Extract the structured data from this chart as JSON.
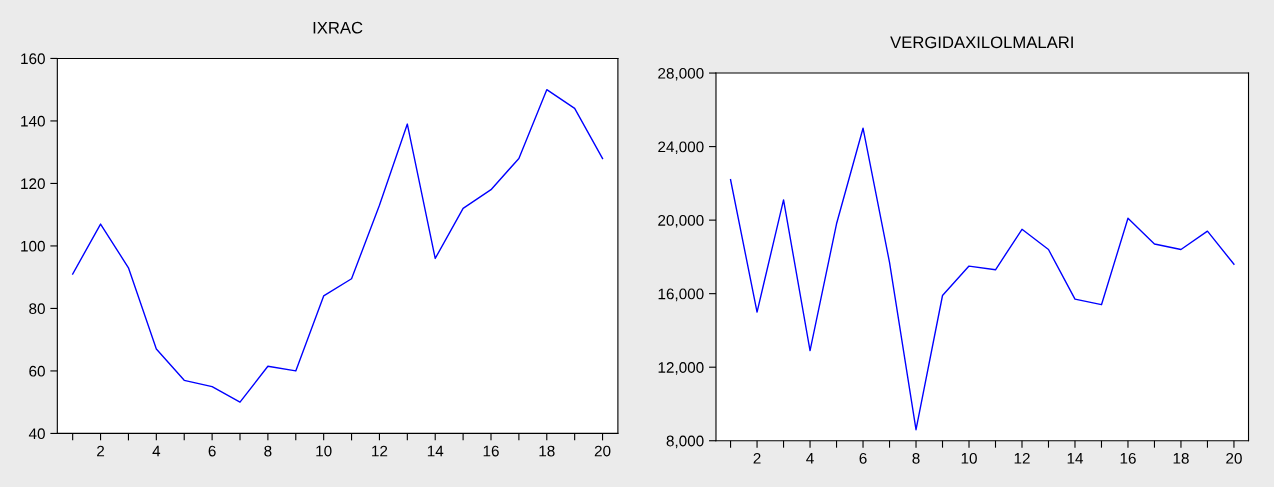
{
  "chart_data": [
    {
      "type": "line",
      "title": "IXRAC",
      "x": [
        1,
        2,
        3,
        4,
        5,
        6,
        7,
        8,
        9,
        10,
        11,
        12,
        13,
        14,
        15,
        16,
        17,
        18,
        19,
        20
      ],
      "series": [
        {
          "color": "#0000ff",
          "values": [
            91,
            107,
            93,
            67,
            57,
            55,
            50,
            61.5,
            60,
            84,
            89.5,
            113,
            139,
            96,
            112,
            118,
            128,
            150,
            144,
            128
          ]
        }
      ],
      "xlim": [
        0.45,
        20.55
      ],
      "xticks": [
        {
          "value": 1,
          "label": null
        },
        2,
        {
          "value": 3,
          "label": null
        },
        4,
        {
          "value": 5,
          "label": null
        },
        6,
        {
          "value": 7,
          "label": null
        },
        8,
        {
          "value": 9,
          "label": null
        },
        10,
        {
          "value": 11,
          "label": null
        },
        12,
        {
          "value": 13,
          "label": null
        },
        14,
        {
          "value": 15,
          "label": null
        },
        16,
        {
          "value": 17,
          "label": null
        },
        18,
        {
          "value": 19,
          "label": null
        },
        20
      ],
      "ylim": [
        40,
        160
      ],
      "yticks": [
        40,
        60,
        80,
        100,
        120,
        140,
        160
      ],
      "grid": false,
      "legend": false
    },
    {
      "type": "line",
      "title": "VERGIDAXILOLMALARI",
      "x": [
        1,
        2,
        3,
        4,
        5,
        6,
        7,
        8,
        9,
        10,
        11,
        12,
        13,
        14,
        15,
        16,
        17,
        18,
        19,
        20
      ],
      "series": [
        {
          "color": "#0000ff",
          "values": [
            22200,
            15000,
            21100,
            12900,
            19800,
            25000,
            17700,
            8600,
            15900,
            17500,
            17300,
            19500,
            18400,
            15700,
            15400,
            20100,
            18700,
            18400,
            19400,
            17600
          ]
        }
      ],
      "xlim": [
        0.45,
        20.55
      ],
      "xticks": [
        {
          "value": 1,
          "label": null
        },
        2,
        {
          "value": 3,
          "label": null
        },
        4,
        {
          "value": 5,
          "label": null
        },
        6,
        {
          "value": 7,
          "label": null
        },
        8,
        {
          "value": 9,
          "label": null
        },
        10,
        {
          "value": 11,
          "label": null
        },
        12,
        {
          "value": 13,
          "label": null
        },
        14,
        {
          "value": 15,
          "label": null
        },
        16,
        {
          "value": 17,
          "label": null
        },
        18,
        {
          "value": 19,
          "label": null
        },
        20
      ],
      "ylim": [
        8000,
        28000
      ],
      "yticks": [
        {
          "value": 8000,
          "label": "8,000"
        },
        {
          "value": 12000,
          "label": "12,000"
        },
        {
          "value": 16000,
          "label": "16,000"
        },
        {
          "value": 20000,
          "label": "20,000"
        },
        {
          "value": 24000,
          "label": "24,000"
        },
        {
          "value": 28000,
          "label": "28,000"
        }
      ],
      "grid": false,
      "legend": false
    }
  ]
}
